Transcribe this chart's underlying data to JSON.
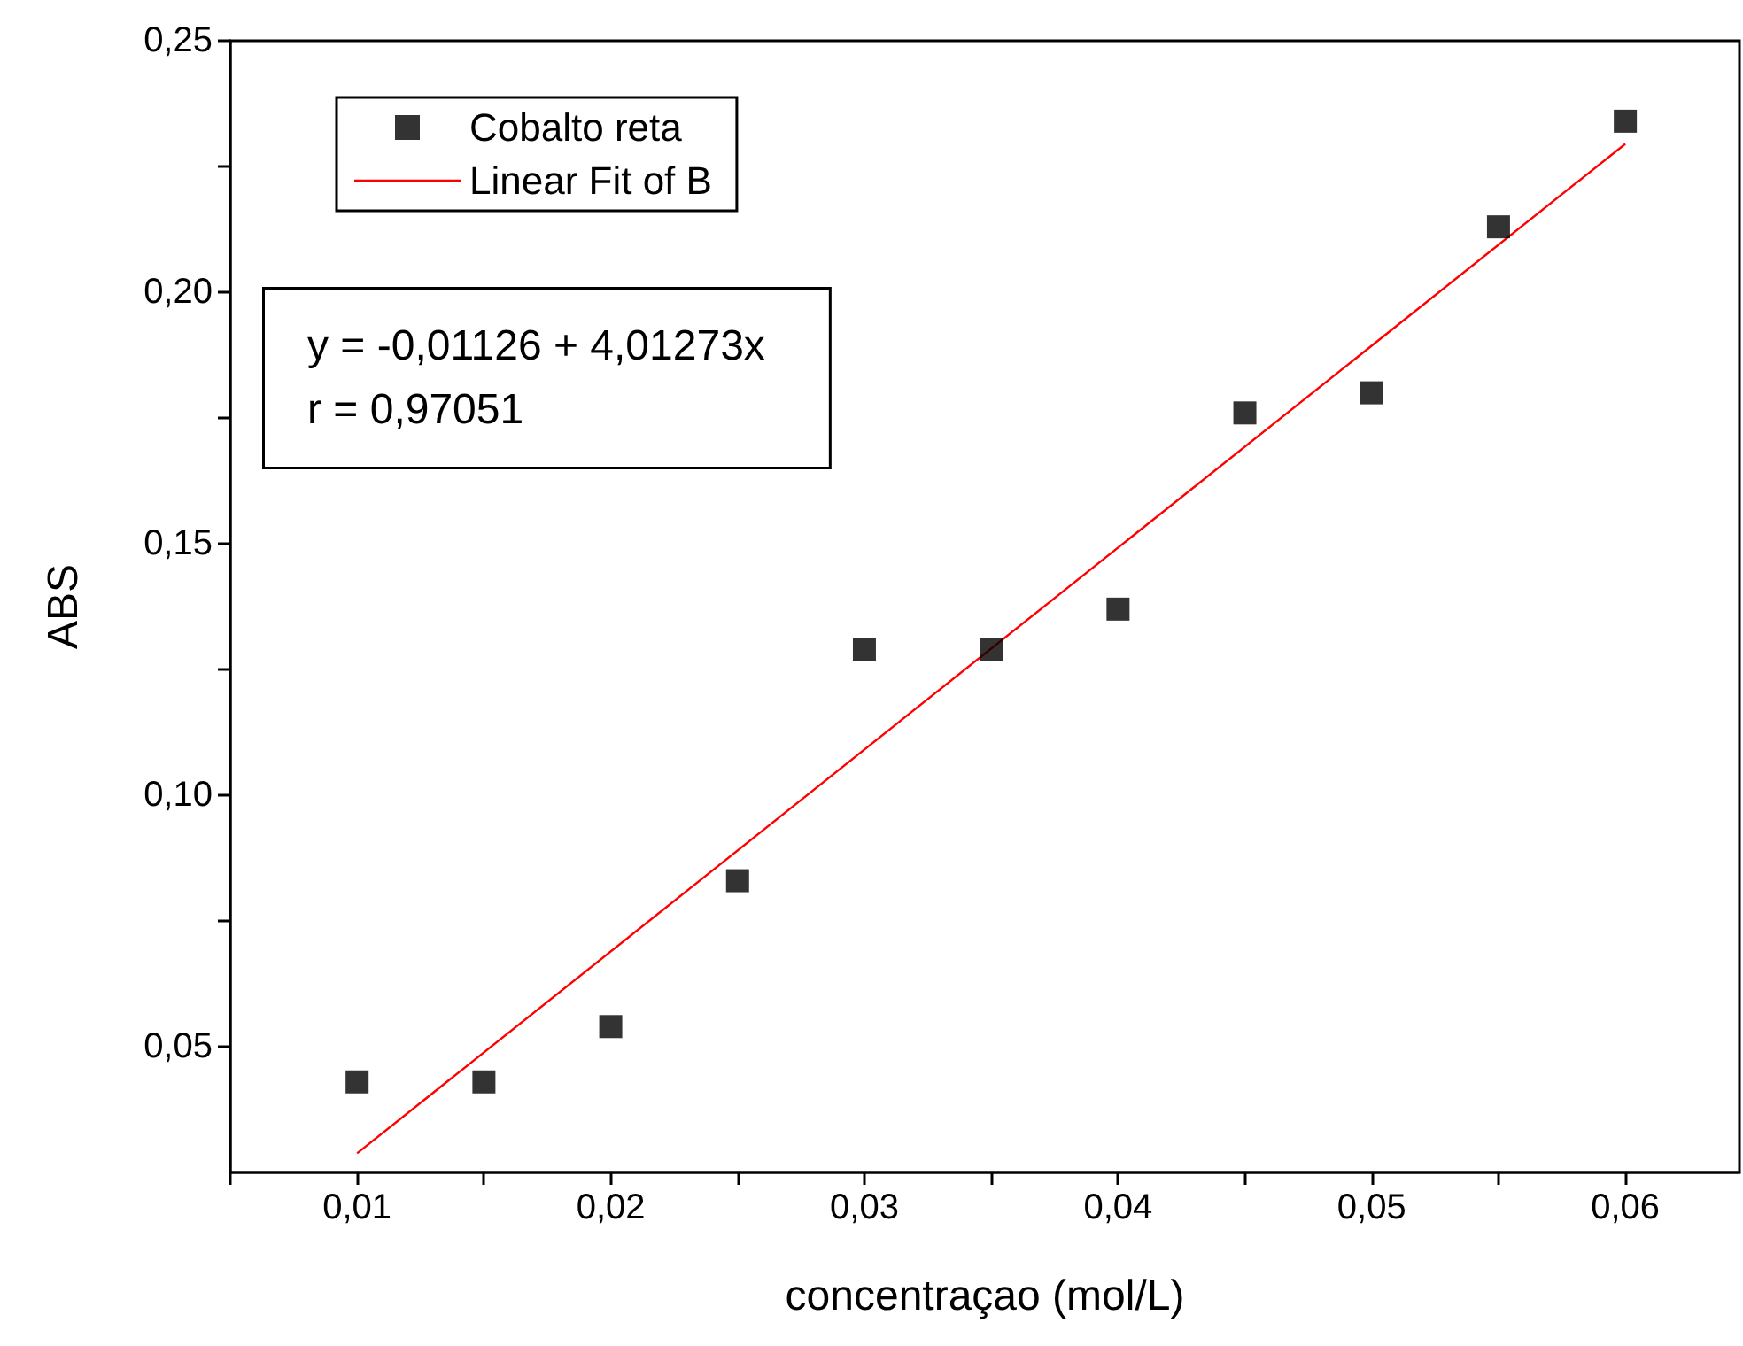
{
  "chart_data": {
    "type": "scatter",
    "xlabel": "concentraçao (mol/L)",
    "ylabel": "ABS",
    "xlim": [
      0.005,
      0.0645
    ],
    "ylim": [
      0.025,
      0.25
    ],
    "xticks": [
      {
        "value": 0.005,
        "label": null
      },
      {
        "value": 0.01,
        "label": "0,01"
      },
      {
        "value": 0.015,
        "label": null
      },
      {
        "value": 0.02,
        "label": "0,02"
      },
      {
        "value": 0.025,
        "label": null
      },
      {
        "value": 0.03,
        "label": "0,03"
      },
      {
        "value": 0.035,
        "label": null
      },
      {
        "value": 0.04,
        "label": "0,04"
      },
      {
        "value": 0.045,
        "label": null
      },
      {
        "value": 0.05,
        "label": "0,05"
      },
      {
        "value": 0.055,
        "label": null
      },
      {
        "value": 0.06,
        "label": "0,06"
      }
    ],
    "yticks": [
      {
        "value": 0.05,
        "label": "0,05"
      },
      {
        "value": 0.075,
        "label": null
      },
      {
        "value": 0.1,
        "label": "0,10"
      },
      {
        "value": 0.125,
        "label": null
      },
      {
        "value": 0.15,
        "label": "0,15"
      },
      {
        "value": 0.175,
        "label": null
      },
      {
        "value": 0.2,
        "label": "0,20"
      },
      {
        "value": 0.225,
        "label": null
      },
      {
        "value": 0.25,
        "label": "0,25"
      }
    ],
    "grid": false,
    "legend": "top left",
    "annotations": [
      "y = -0,01126 + 4,01273x",
      "r = 0,97051"
    ],
    "series": [
      {
        "name": "Cobalto reta",
        "color": "#000000",
        "marker": "square",
        "x": [
          0.01,
          0.015,
          0.02,
          0.025,
          0.03,
          0.035,
          0.04,
          0.045,
          0.05,
          0.055,
          0.06
        ],
        "values": [
          0.043,
          0.043,
          0.054,
          0.083,
          0.129,
          0.129,
          0.137,
          0.176,
          0.18,
          0.213,
          0.234
        ]
      },
      {
        "name": "Linear Fit of B",
        "type": "line",
        "color": "#ff0000",
        "marker": "none",
        "line_style": "solid",
        "x": [
          0.01,
          0.06
        ],
        "values": [
          0.0288,
          0.2295
        ]
      }
    ]
  }
}
